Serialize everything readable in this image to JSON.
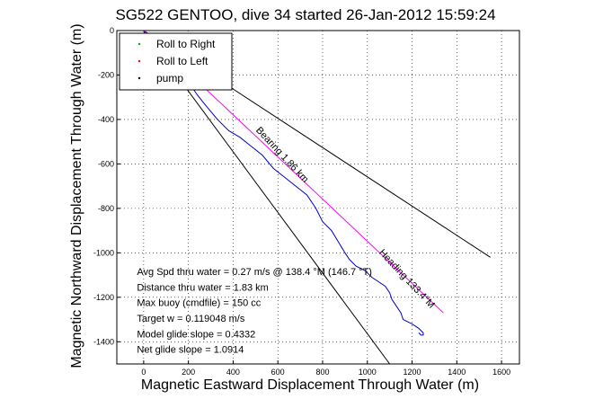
{
  "chart_data": {
    "type": "line",
    "title": "SG522 GENTOO, dive 34 started 26-Jan-2012 15:59:24",
    "xlabel": "Magnetic Eastward Displacement Through Water (m)",
    "ylabel": "Magnetic Northward Displacement Through Water (m)",
    "xlim": [
      -120,
      1680
    ],
    "ylim": [
      -1500,
      0
    ],
    "xticks": [
      0,
      200,
      400,
      600,
      800,
      1000,
      1200,
      1400,
      1600
    ],
    "yticks": [
      0,
      -200,
      -400,
      -600,
      -800,
      -1000,
      -1200,
      -1400
    ],
    "grid": true,
    "legend": {
      "location": "top-left",
      "entries": [
        {
          "label": "Roll to Right",
          "color": "#00aa00"
        },
        {
          "label": "Roll to Left",
          "color": "#ff0000"
        },
        {
          "label": "pump",
          "color": "#000000"
        }
      ]
    },
    "series": [
      {
        "color": "#0000cc",
        "x": [
          0,
          5,
          15,
          30,
          60,
          100,
          150,
          200,
          240,
          280,
          330,
          380,
          430,
          480,
          530,
          580,
          630,
          680,
          730,
          770,
          800,
          840,
          870,
          900,
          920,
          950,
          990,
          1020,
          1050,
          1080,
          1100,
          1110,
          1130,
          1150,
          1160,
          1200,
          1230,
          1250,
          1250,
          1240,
          1230
        ],
        "y": [
          0,
          -20,
          -40,
          -60,
          -90,
          -130,
          -180,
          -230,
          -290,
          -340,
          -400,
          -450,
          -480,
          -520,
          -560,
          -620,
          -660,
          -700,
          -740,
          -800,
          -860,
          -900,
          -950,
          -1000,
          -1030,
          -1060,
          -1080,
          -1110,
          -1130,
          -1150,
          -1180,
          -1210,
          -1240,
          -1270,
          -1300,
          -1320,
          -1340,
          -1360,
          -1370,
          -1370,
          -1360
        ]
      },
      {
        "color": "#ff00ff",
        "x": [
          0,
          1340
        ],
        "y": [
          0,
          -1270
        ]
      }
    ],
    "reference_lines": [
      {
        "color": "#000000",
        "x": [
          0,
          1550
        ],
        "y": [
          0,
          -1020
        ]
      },
      {
        "color": "#000000",
        "x": [
          0,
          1100
        ],
        "y": [
          0,
          -1500
        ]
      }
    ],
    "annotations": [
      {
        "text": "Heading 133.4°M",
        "x": 1050,
        "y": -1000,
        "rotation": 47
      },
      {
        "text": "Bearing 1.86 km",
        "x": 500,
        "y": -450,
        "rotation": 47
      },
      {
        "text": "Avg Spd thru water =  0.27 m/s @ 138.4 °M (146.7 °T)",
        "x": -30,
        "y": -1100
      },
      {
        "text": "Distance thru water = 1.83 km",
        "x": -30,
        "y": -1170
      },
      {
        "text": "Max buoy (cmdfile) = 150 cc",
        "x": -30,
        "y": -1240
      },
      {
        "text": "Target w = 0.119048 m/s",
        "x": -30,
        "y": -1310
      },
      {
        "text": "Model glide slope = 0.4332",
        "x": -30,
        "y": -1380
      },
      {
        "text": "Net glide slope = 1.0914",
        "x": -30,
        "y": -1450
      }
    ]
  }
}
